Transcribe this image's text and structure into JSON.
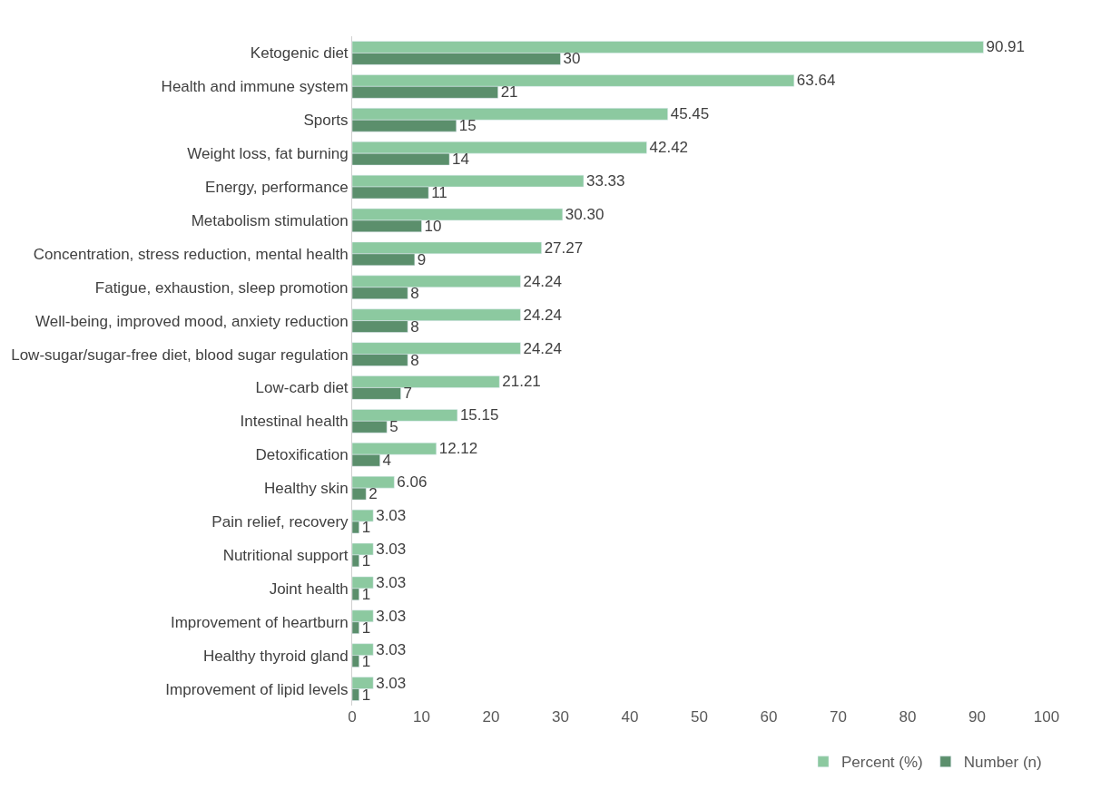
{
  "chart_data": {
    "type": "bar",
    "orientation": "horizontal",
    "categories": [
      "Ketogenic diet",
      "Health and immune system",
      "Sports",
      "Weight loss, fat burning",
      "Energy, performance",
      "Metabolism stimulation",
      "Concentration, stress reduction, mental health",
      "Fatigue, exhaustion, sleep promotion",
      "Well-being, improved mood, anxiety reduction",
      "Low-sugar/sugar-free diet, blood sugar regulation",
      "Low-carb diet",
      "Intestinal health",
      "Detoxification",
      "Healthy skin",
      "Pain relief, recovery",
      "Nutritional support",
      "Joint health",
      "Improvement of heartburn",
      "Healthy thyroid gland",
      "Improvement of lipid levels"
    ],
    "series": [
      {
        "name": "Percent (%)",
        "color": "#8cc9a0",
        "values": [
          90.91,
          63.64,
          45.45,
          42.42,
          33.33,
          30.3,
          27.27,
          24.24,
          24.24,
          24.24,
          21.21,
          15.15,
          12.12,
          6.06,
          3.03,
          3.03,
          3.03,
          3.03,
          3.03,
          3.03
        ],
        "value_labels": [
          "90.91",
          "63.64",
          "45.45",
          "42.42",
          "33.33",
          "30.30",
          "27.27",
          "24.24",
          "24.24",
          "24.24",
          "21.21",
          "15.15",
          "12.12",
          "6.06",
          "3.03",
          "3.03",
          "3.03",
          "3.03",
          "3.03",
          "3.03"
        ]
      },
      {
        "name": "Number (n)",
        "color": "#5b8f6c",
        "values": [
          30,
          21,
          15,
          14,
          11,
          10,
          9,
          8,
          8,
          8,
          7,
          5,
          4,
          2,
          1,
          1,
          1,
          1,
          1,
          1
        ],
        "value_labels": [
          "30",
          "21",
          "15",
          "14",
          "11",
          "10",
          "9",
          "8",
          "8",
          "8",
          "7",
          "5",
          "4",
          "2",
          "1",
          "1",
          "1",
          "1",
          "1",
          "1"
        ]
      }
    ],
    "xlim": [
      0,
      100
    ],
    "xticks": [
      0,
      10,
      20,
      30,
      40,
      50,
      60,
      70,
      80,
      90,
      100
    ],
    "legend": "bottom right"
  }
}
